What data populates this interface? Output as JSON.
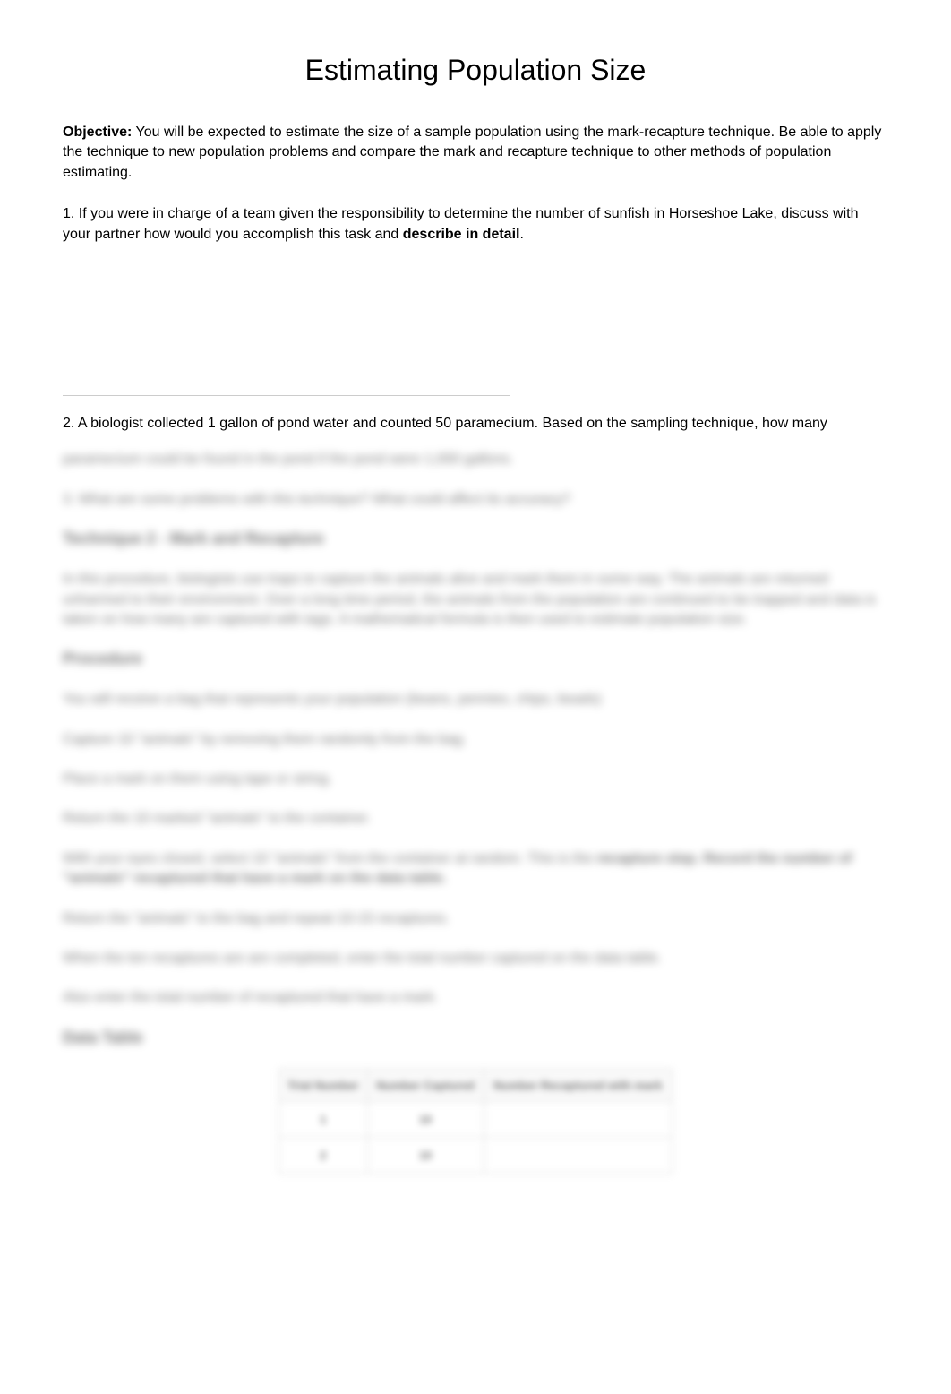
{
  "title": "Estimating Population Size",
  "objective": {
    "label": "Objective:",
    "text": "You will be expected to estimate the size of a sample population using the mark-recapture technique. Be able to apply the technique to new population problems and compare the mark and recapture technique to other methods of population estimating."
  },
  "question1": {
    "prefix": "1. If you were in charge of a team given the responsibility to determine the number of sunfish in Horseshoe Lake, discuss with your partner how would you accomplish this task and ",
    "bold": "describe in detail",
    "suffix": "."
  },
  "question2": {
    "prefix": "2. A biologist collected 1 gallon of pond water and counted 50 paramecium. Based on the sampling technique, how many ",
    "blurred_continuation": "paramecium could be found in the pond if the pond were 1,000 gallons."
  },
  "blurred": {
    "q3": "3. What are some problems with this technique? What could affect its accuracy?",
    "heading1": "Technique 2 - Mark and Recapture",
    "intro": "In this procedure, biologists use traps to capture the animals alive and mark them in some way. The animals are returned unharmed to their environment. Over a long time period, the animals from the population are continued to be trapped and data is taken on how many are captured with tags. A mathematical formula is then used to estimate population size.",
    "heading2": "Procedure",
    "step1": "You will receive a bag that represents your population (beans, pennies, chips, beads)",
    "step2": "Capture 10 \"animals\" by removing them randomly from the bag.",
    "step3": "Place a mark on them using tape or string.",
    "step4": "Return the 10 marked \"animals\" to the container.",
    "step5_prefix": "With your eyes closed, select 10 \"animals\" from the container at random. This is the ",
    "step5_bold": "recapture step. Record the number of \"animals\" recaptured that have a mark on the data table.",
    "step6": "Return the \"animals\" to the bag and repeat 10-15 recaptures.",
    "step7": "When the ten recaptures are are completed, enter the total number captured on the data table.",
    "step8": "Also enter the total number of recaptured that have a mark.",
    "heading3": "Data Table"
  },
  "table": {
    "headers": [
      "Trial Number",
      "Number Captured",
      "Number Recaptured with mark"
    ],
    "rows": [
      [
        "1",
        "10",
        ""
      ],
      [
        "2",
        "10",
        ""
      ]
    ]
  }
}
